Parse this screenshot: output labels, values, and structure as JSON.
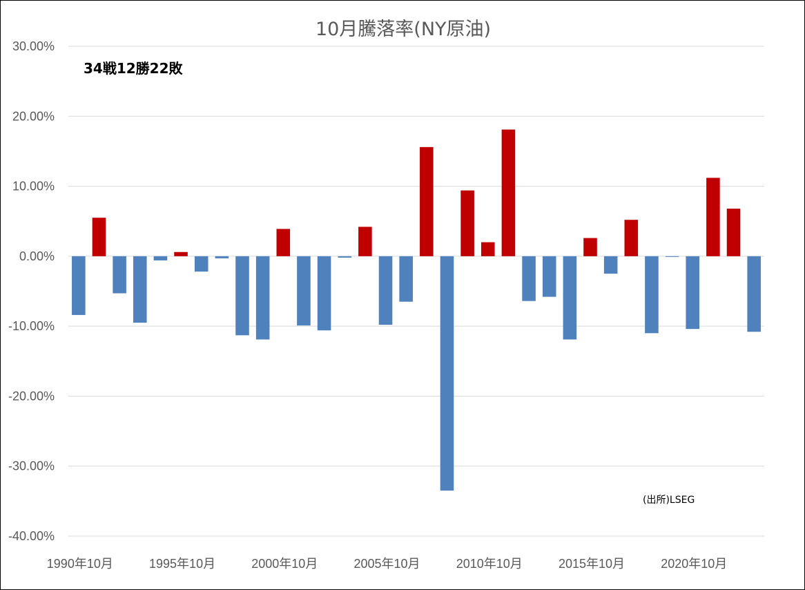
{
  "chart_data": {
    "type": "bar",
    "title": "10月騰落率(NY原油)",
    "annotations": {
      "record": "34戦12勝22敗",
      "source": "(出所)LSEG"
    },
    "xlabel": "",
    "ylabel": "",
    "ylim": [
      -40,
      30
    ],
    "y_ticks": [
      30,
      20,
      10,
      0,
      -10,
      -20,
      -30,
      -40
    ],
    "y_tick_labels": [
      "30.00%",
      "20.00%",
      "10.00%",
      "0.00%",
      "-10.00%",
      "-20.00%",
      "-30.00%",
      "-40.00%"
    ],
    "x_tick_labels": [
      {
        "year": 1990,
        "label": "1990年10月"
      },
      {
        "year": 1995,
        "label": "1995年10月"
      },
      {
        "year": 2000,
        "label": "2000年10月"
      },
      {
        "year": 2005,
        "label": "2005年10月"
      },
      {
        "year": 2010,
        "label": "2010年10月"
      },
      {
        "year": 2015,
        "label": "2015年10月"
      },
      {
        "year": 2020,
        "label": "2020年10月"
      }
    ],
    "grid": true,
    "legend": "none",
    "colors": {
      "positive": "#c00000",
      "negative": "#4f81bd"
    },
    "categories": [
      1990,
      1991,
      1992,
      1993,
      1994,
      1995,
      1996,
      1997,
      1998,
      1999,
      2000,
      2001,
      2002,
      2003,
      2004,
      2005,
      2006,
      2007,
      2008,
      2009,
      2010,
      2011,
      2012,
      2013,
      2014,
      2015,
      2016,
      2017,
      2018,
      2019,
      2020,
      2021,
      2022,
      2023
    ],
    "values": [
      -8.4,
      5.5,
      -5.3,
      -9.5,
      -0.6,
      0.6,
      -2.2,
      -0.3,
      -11.3,
      -11.9,
      3.9,
      -9.9,
      -10.6,
      -0.2,
      4.2,
      -9.8,
      -6.5,
      15.6,
      -33.5,
      9.4,
      2.0,
      18.1,
      -6.4,
      -5.8,
      -11.9,
      2.6,
      -2.5,
      5.2,
      -11.0,
      -0.1,
      -10.4,
      11.2,
      6.8,
      -10.8
    ]
  }
}
